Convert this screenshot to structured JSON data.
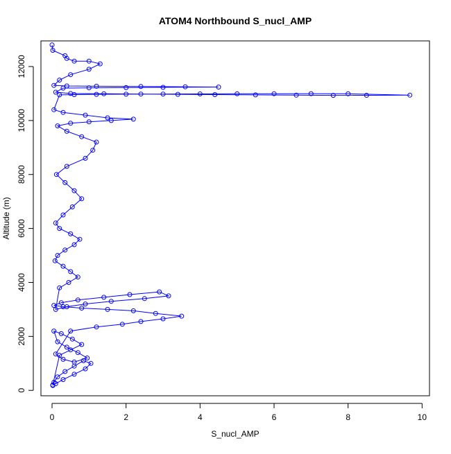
{
  "chart_data": {
    "type": "scatter",
    "title": "ATOM4 Northbound S_nucl_AMP",
    "xlabel": "S_nucl_AMP",
    "ylabel": "Altitude (m)",
    "xlim": [
      -0.3,
      10.2
    ],
    "ylim": [
      -200,
      12950
    ],
    "x_ticks": [
      0,
      2,
      4,
      6,
      8,
      10
    ],
    "y_ticks": [
      0,
      2000,
      4000,
      6000,
      8000,
      10000,
      12000
    ],
    "grid": false,
    "marker": "open-circle",
    "connected": true,
    "color": "#0000ff",
    "series": [
      {
        "x": [
          0.02,
          0.05,
          0.15,
          0.35,
          0.6,
          0.85,
          1.05,
          0.9,
          0.6,
          0.3,
          0.1,
          0.02,
          0.2,
          0.5,
          0.8,
          0.55,
          0.25,
          0.05,
          0.15,
          0.4,
          0.7,
          0.95,
          0.6,
          0.3,
          0.1,
          0.5,
          1.2,
          1.9,
          2.4,
          3.0,
          3.5,
          2.8,
          2.2,
          1.5,
          0.8,
          0.3,
          0.05,
          0.25,
          0.7,
          1.4,
          2.1,
          2.9,
          3.15,
          2.5,
          1.6,
          0.9,
          0.4,
          0.1,
          0.2,
          0.45,
          0.7,
          0.5,
          0.3,
          0.08,
          0.15,
          0.35,
          0.6,
          0.75,
          0.5,
          0.2,
          0.1,
          0.3,
          0.55,
          0.8,
          0.6,
          0.35,
          0.12,
          0.4,
          0.9,
          1.1,
          1.2,
          0.8,
          0.4,
          0.15,
          0.5,
          1.0,
          1.6,
          2.2,
          1.5,
          0.9,
          0.3,
          0.05,
          0.2,
          0.6,
          1.2,
          2.0,
          3.0,
          4.0,
          5.0,
          6.0,
          7.0,
          8.0,
          9.67,
          8.5,
          7.6,
          6.6,
          5.5,
          4.4,
          3.4,
          2.4,
          1.4,
          0.5,
          0.1,
          0.3,
          1.0,
          2.0,
          3.0,
          4.5,
          3.6,
          2.4,
          1.2,
          0.4,
          0.05,
          0.2,
          0.5,
          1.0,
          1.3,
          1.0,
          0.6,
          0.4,
          0.35,
          0.02,
          0.0
        ],
        "y": [
          180,
          300,
          500,
          700,
          900,
          1100,
          1000,
          800,
          600,
          400,
          250,
          200,
          1300,
          1500,
          1700,
          1900,
          2100,
          2200,
          1800,
          1600,
          1400,
          1200,
          1050,
          1150,
          1350,
          2200,
          2350,
          2450,
          2550,
          2650,
          2750,
          2850,
          2950,
          3000,
          3050,
          3100,
          3150,
          3250,
          3350,
          3450,
          3550,
          3650,
          3500,
          3400,
          3300,
          3200,
          3100,
          3000,
          3800,
          4000,
          4200,
          4400,
          4600,
          4800,
          5000,
          5200,
          5400,
          5600,
          5800,
          6000,
          6200,
          6500,
          6800,
          7100,
          7400,
          7700,
          8000,
          8300,
          8600,
          8900,
          9200,
          9400,
          9600,
          9800,
          9900,
          9950,
          10000,
          10050,
          10100,
          10200,
          10300,
          10400,
          10950,
          10960,
          10970,
          10975,
          10980,
          10985,
          10990,
          10992,
          10995,
          10990,
          10940,
          10935,
          10930,
          10940,
          10950,
          10960,
          10970,
          10980,
          10990,
          11000,
          11050,
          11200,
          11210,
          11220,
          11230,
          11240,
          11250,
          11260,
          11270,
          11280,
          11300,
          11500,
          11700,
          11900,
          12100,
          12200,
          12200,
          12300,
          12400,
          12600,
          12800
        ]
      }
    ]
  }
}
